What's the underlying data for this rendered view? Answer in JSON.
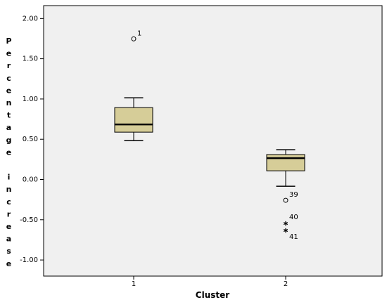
{
  "chart_data": {
    "type": "box",
    "x_label": "Cluster",
    "y_label": "Percentage increase",
    "categories": [
      "1",
      "2"
    ],
    "ylim": [
      -1.2,
      2.16
    ],
    "yticks": [
      {
        "value": -1,
        "label": "-1.00"
      },
      {
        "value": -0.5,
        "label": "-0.50"
      },
      {
        "value": 0,
        "label": "0.00"
      },
      {
        "value": 0.5,
        "label": "0.50"
      },
      {
        "value": 1,
        "label": "1.00"
      },
      {
        "value": 1.5,
        "label": "1.50"
      },
      {
        "value": 2,
        "label": "2.00"
      }
    ],
    "color": "#d6cd98",
    "boxes": [
      {
        "whisker_low": 0.483,
        "q1": 0.588,
        "median": 0.684,
        "q3": 0.893,
        "whisker_high": 1.015,
        "outliers": [
          {
            "value": 1.747,
            "label": "1",
            "marker": "circle"
          }
        ]
      },
      {
        "whisker_low": -0.084,
        "q1": 0.108,
        "median": 0.265,
        "q3": 0.31,
        "whisker_high": 0.37,
        "outliers": [
          {
            "value": -0.258,
            "label": "39",
            "marker": "circle"
          },
          {
            "value": -0.546,
            "label": "40",
            "marker": "star"
          },
          {
            "value": -0.633,
            "label": "41",
            "marker": "star"
          }
        ]
      }
    ]
  }
}
